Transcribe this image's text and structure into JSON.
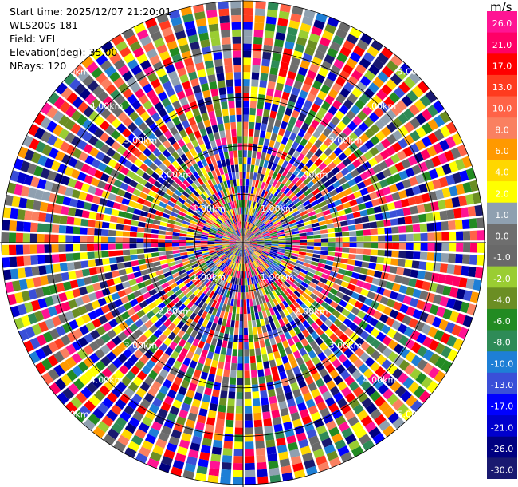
{
  "info": {
    "start_time": "Start time: 2025/12/07 21:20:01",
    "instrument": "WLS200s-181",
    "field": "Field: VEL",
    "elevation": "Elevation(deg): 35.00",
    "nrays": "NRays: 120"
  },
  "colorbar": {
    "unit": "m/s",
    "bins": [
      {
        "label": "26.0",
        "color": "#ff1493"
      },
      {
        "label": "21.0",
        "color": "#ff0066"
      },
      {
        "label": "17.0",
        "color": "#ff0000"
      },
      {
        "label": "13.0",
        "color": "#ff3b1f"
      },
      {
        "label": "10.0",
        "color": "#ff6347"
      },
      {
        "label": "8.0",
        "color": "#fa8060"
      },
      {
        "label": "6.0",
        "color": "#ff9900"
      },
      {
        "label": "4.0",
        "color": "#ffd700"
      },
      {
        "label": "2.0",
        "color": "#ffff00"
      },
      {
        "label": "1.0",
        "color": "#8fa0b0"
      },
      {
        "label": "0.0",
        "color": "#6e6e6e"
      },
      {
        "label": "-1.0",
        "color": "#696969"
      },
      {
        "label": "-2.0",
        "color": "#9acd32"
      },
      {
        "label": "-4.0",
        "color": "#6b8e23"
      },
      {
        "label": "-6.0",
        "color": "#228b22"
      },
      {
        "label": "-8.0",
        "color": "#2e8b57"
      },
      {
        "label": "-10.0",
        "color": "#1e7fd6"
      },
      {
        "label": "-13.0",
        "color": "#3a4fd8"
      },
      {
        "label": "-17.0",
        "color": "#0000ff"
      },
      {
        "label": "-21.0",
        "color": "#0000cd"
      },
      {
        "label": "-26.0",
        "color": "#000080"
      },
      {
        "label": "-30.0",
        "color": "#191970"
      }
    ]
  },
  "chart_data": {
    "type": "heatmap",
    "projection": "polar-ppi",
    "field": "VEL",
    "nrays": 120,
    "range_rings_km": [
      1.0,
      2.0,
      3.0,
      4.0,
      5.0
    ],
    "range_labels": [
      "1.00km",
      "2.00km",
      "3.00km",
      "4.00km",
      "5.00km"
    ],
    "max_range_km": 5.0,
    "value_range": [
      -30.0,
      30.0
    ],
    "unit": "m/s",
    "note_values": "velocity field appears as dense, noisy multicolored radial gates spanning the full colorbar range"
  }
}
